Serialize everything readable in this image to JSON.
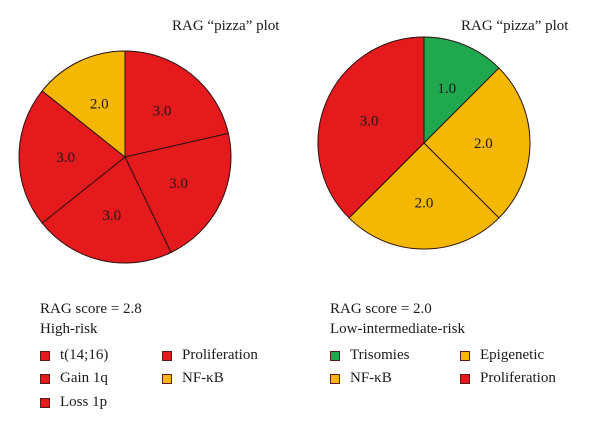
{
  "chart_data": [
    {
      "type": "pie",
      "title": "RAG “pizza” plot",
      "score_text": "RAG score = 2.8",
      "risk_text": "High-risk",
      "slices": [
        {
          "label": "Proliferation",
          "value": 3.0,
          "display": "3.0",
          "color": "#e41a1c"
        },
        {
          "label": "t(14;16)",
          "value": 3.0,
          "display": "3.0",
          "color": "#e41a1c"
        },
        {
          "label": "Gain 1q",
          "value": 3.0,
          "display": "3.0",
          "color": "#e41a1c"
        },
        {
          "label": "Loss 1p",
          "value": 3.0,
          "display": "3.0",
          "color": "#e41a1c"
        },
        {
          "label": "NF-κB",
          "value": 2.0,
          "display": "2.0",
          "color": "#f5b800"
        }
      ],
      "legend": [
        {
          "label": "t(14;16)",
          "color": "#e41a1c"
        },
        {
          "label": "Gain 1q",
          "color": "#e41a1c"
        },
        {
          "label": "Loss 1p",
          "color": "#e41a1c"
        },
        {
          "label": "Proliferation",
          "color": "#e41a1c"
        },
        {
          "label": "NF-κB",
          "color": "#f5b800"
        }
      ]
    },
    {
      "type": "pie",
      "title": "RAG “pizza” plot",
      "score_text": "RAG score = 2.0",
      "risk_text": "Low-intermediate-risk",
      "slices": [
        {
          "label": "Trisomies",
          "value": 1.0,
          "display": "1.0",
          "color": "#1fa84e"
        },
        {
          "label": "Epigenetic",
          "value": 2.0,
          "display": "2.0",
          "color": "#f5b800"
        },
        {
          "label": "NF-κB",
          "value": 2.0,
          "display": "2.0",
          "color": "#f5b800"
        },
        {
          "label": "Proliferation",
          "value": 3.0,
          "display": "3.0",
          "color": "#e41a1c"
        }
      ],
      "legend": [
        {
          "label": "Trisomies",
          "color": "#1fa84e"
        },
        {
          "label": "NF-κB",
          "color": "#f5b800"
        },
        {
          "label": "Epigenetic",
          "color": "#f5b800"
        },
        {
          "label": "Proliferation",
          "color": "#e41a1c"
        }
      ]
    }
  ]
}
